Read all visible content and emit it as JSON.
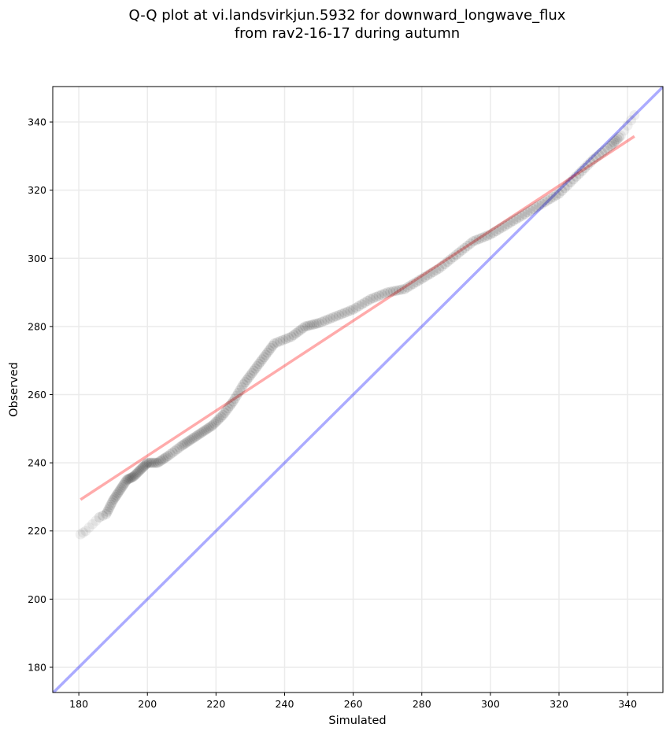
{
  "chart_data": {
    "type": "scatter",
    "title_line1": "Q-Q plot at vi.landsvirkjun.5932 for downward_longwave_flux",
    "title_line2": "from rav2-16-17 during autumn",
    "xlabel": "Simulated",
    "ylabel": "Observed",
    "xlim": [
      172.4,
      350.3
    ],
    "ylim": [
      172.6,
      350.4
    ],
    "xticks": [
      180,
      200,
      220,
      240,
      260,
      280,
      300,
      320,
      340
    ],
    "yticks": [
      180,
      200,
      220,
      240,
      260,
      280,
      300,
      320,
      340
    ],
    "grid": true,
    "marker_color": "#000000",
    "quantiles": {
      "x": [
        180.5,
        182,
        184,
        186,
        188,
        190,
        192,
        194,
        196,
        198,
        200,
        203,
        206,
        210,
        213,
        216,
        219,
        222,
        225,
        228,
        231,
        234,
        237,
        242,
        246,
        250,
        255,
        260,
        265,
        270,
        275,
        280,
        285,
        290,
        295,
        300,
        305,
        310,
        315,
        320,
        325,
        330,
        335,
        338,
        340,
        342
      ],
      "y": [
        219,
        220,
        222,
        224,
        225,
        229,
        232,
        235,
        236,
        238,
        240,
        240,
        242,
        245,
        247,
        249,
        251,
        254,
        258,
        263,
        267,
        271,
        275,
        277,
        280,
        281,
        283,
        285,
        288,
        290,
        291,
        294,
        297,
        301,
        305,
        307,
        310,
        313,
        316,
        319,
        324,
        329,
        333,
        336,
        339,
        342
      ]
    },
    "fit_line": {
      "x": [
        180.5,
        342
      ],
      "y": [
        229.2,
        335.8
      ],
      "color": "#ff0000"
    },
    "identity_line": {
      "color": "#0000ff"
    }
  }
}
